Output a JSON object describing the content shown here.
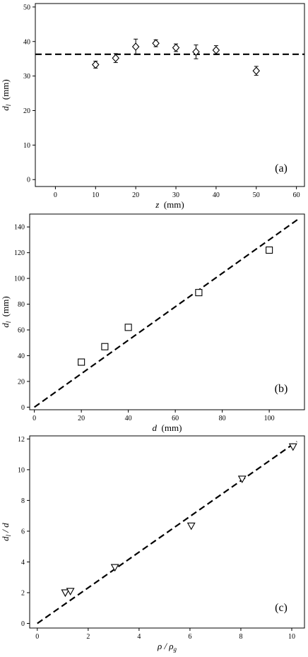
{
  "chart_data": [
    {
      "type": "scatter",
      "panel_label": "(a)",
      "xlabel": {
        "var": "z",
        "unit": "(mm)"
      },
      "ylabel": {
        "var": "d",
        "sub": "l",
        "unit": "(mm)"
      },
      "xlim": [
        -5,
        62
      ],
      "ylim": [
        -2,
        51
      ],
      "xticks": [
        0,
        10,
        20,
        30,
        40,
        50,
        60
      ],
      "yticks": [
        0,
        10,
        20,
        30,
        40,
        50
      ],
      "marker": "diamond",
      "points": [
        {
          "x": 10,
          "y": 33.3,
          "err": 1.0
        },
        {
          "x": 15,
          "y": 35.2,
          "err": 1.3
        },
        {
          "x": 20,
          "y": 38.5,
          "err": 2.2
        },
        {
          "x": 25,
          "y": 39.5,
          "err": 1.0
        },
        {
          "x": 30,
          "y": 38.2,
          "err": 1.1
        },
        {
          "x": 35,
          "y": 37.0,
          "err": 2.0
        },
        {
          "x": 40,
          "y": 37.5,
          "err": 1.3
        },
        {
          "x": 50,
          "y": 31.5,
          "err": 1.3
        }
      ],
      "fit_line": {
        "type": "horizontal",
        "y": 36.3
      },
      "grid": false
    },
    {
      "type": "scatter",
      "panel_label": "(b)",
      "xlabel": {
        "var": "d",
        "unit": "(mm)"
      },
      "ylabel": {
        "var": "d",
        "sub": "l",
        "unit": "(mm)"
      },
      "xlim": [
        -2,
        115
      ],
      "ylim": [
        -2,
        150
      ],
      "xticks": [
        0,
        20,
        40,
        60,
        80,
        100
      ],
      "yticks": [
        0,
        20,
        40,
        60,
        80,
        100,
        120,
        140
      ],
      "marker": "square",
      "points": [
        {
          "x": 20,
          "y": 35
        },
        {
          "x": 30,
          "y": 47
        },
        {
          "x": 40,
          "y": 62
        },
        {
          "x": 70,
          "y": 89
        },
        {
          "x": 100,
          "y": 122
        }
      ],
      "fit_line": {
        "type": "linear",
        "slope": 1.3,
        "intercept": 0,
        "x_range": [
          0,
          113
        ]
      },
      "grid": false
    },
    {
      "type": "scatter",
      "panel_label": "(c)",
      "xlabel": {
        "var": "ρ / ρ",
        "sub": "g"
      },
      "ylabel": {
        "var": "d",
        "sub": "l",
        "tail": " / d"
      },
      "xlim": [
        -0.3,
        10.5
      ],
      "ylim": [
        -0.3,
        12.2
      ],
      "xticks": [
        0,
        2,
        4,
        6,
        8,
        10
      ],
      "yticks": [
        0,
        2,
        4,
        6,
        8,
        10,
        12
      ],
      "marker": "triangle-down",
      "points": [
        {
          "x": 1.1,
          "y": 2.0
        },
        {
          "x": 1.3,
          "y": 2.1
        },
        {
          "x": 3.05,
          "y": 3.65
        },
        {
          "x": 6.05,
          "y": 6.35
        },
        {
          "x": 8.05,
          "y": 9.4
        },
        {
          "x": 10.05,
          "y": 11.5
        }
      ],
      "fit_line": {
        "type": "linear",
        "slope": 1.16,
        "intercept": 0,
        "x_range": [
          0,
          10.2
        ]
      },
      "grid": false
    }
  ]
}
